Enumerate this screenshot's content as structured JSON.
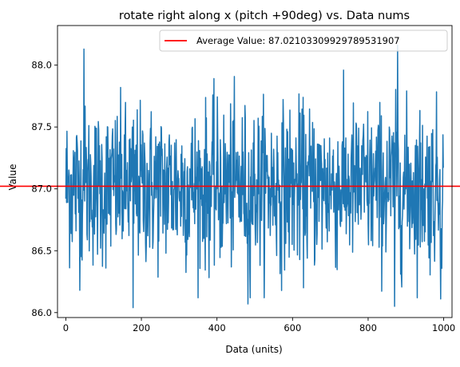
{
  "chart_data": {
    "type": "line",
    "title": "rotate right along x (pitch +90deg) vs. Data nums",
    "xlabel": "Data (units)",
    "ylabel": "Value",
    "xlim": [
      -22,
      1022
    ],
    "ylim": [
      85.96,
      88.32
    ],
    "xticks": [
      0,
      200,
      400,
      600,
      800,
      1000
    ],
    "xtick_labels": [
      "0",
      "200",
      "400",
      "600",
      "800",
      "1000"
    ],
    "yticks": [
      86.0,
      86.5,
      87.0,
      87.5,
      88.0
    ],
    "ytick_labels": [
      "86.0",
      "86.5",
      "87.0",
      "87.5",
      "88.0"
    ],
    "grid": false,
    "legend_position": "top-right",
    "series": [
      {
        "kind": "line",
        "color": "#1f77b4",
        "x_start": 0,
        "x_step": 1,
        "count": 1000,
        "mean": 87.02,
        "std": 0.32,
        "min": 86.04,
        "max": 88.16,
        "notable_points": [
          {
            "x": 48,
            "y": 88.13
          },
          {
            "x": 178,
            "y": 86.04
          },
          {
            "x": 482,
            "y": 86.07
          },
          {
            "x": 870,
            "y": 86.05
          },
          {
            "x": 878,
            "y": 88.16
          },
          {
            "x": 992,
            "y": 86.11
          }
        ]
      },
      {
        "name": "Average Value: 87.02103309929789531907",
        "kind": "hline",
        "y": 87.0210330992979,
        "color": "#ff0000"
      }
    ]
  }
}
